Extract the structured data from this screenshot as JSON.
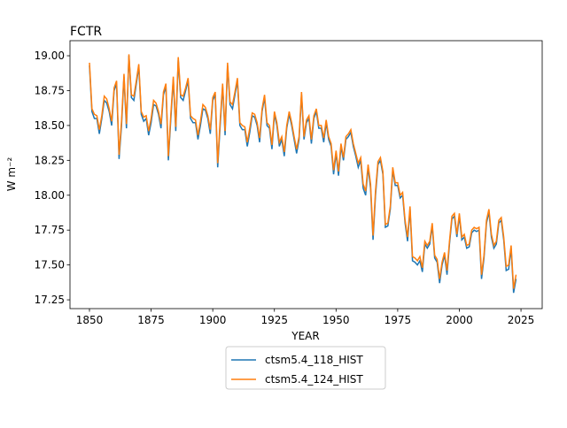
{
  "chart_data": {
    "type": "line",
    "title": "FCTR",
    "xlabel": "YEAR",
    "ylabel": "W m⁻²",
    "x": [
      1850,
      1851,
      1852,
      1853,
      1854,
      1855,
      1856,
      1857,
      1858,
      1859,
      1860,
      1861,
      1862,
      1863,
      1864,
      1865,
      1866,
      1867,
      1868,
      1869,
      1870,
      1871,
      1872,
      1873,
      1874,
      1875,
      1876,
      1877,
      1878,
      1879,
      1880,
      1881,
      1882,
      1883,
      1884,
      1885,
      1886,
      1887,
      1888,
      1889,
      1890,
      1891,
      1892,
      1893,
      1894,
      1895,
      1896,
      1897,
      1898,
      1899,
      1900,
      1901,
      1902,
      1903,
      1904,
      1905,
      1906,
      1907,
      1908,
      1909,
      1910,
      1911,
      1912,
      1913,
      1914,
      1915,
      1916,
      1917,
      1918,
      1919,
      1920,
      1921,
      1922,
      1923,
      1924,
      1925,
      1926,
      1927,
      1928,
      1929,
      1930,
      1931,
      1932,
      1933,
      1934,
      1935,
      1936,
      1937,
      1938,
      1939,
      1940,
      1941,
      1942,
      1943,
      1944,
      1945,
      1946,
      1947,
      1948,
      1949,
      1950,
      1951,
      1952,
      1953,
      1954,
      1955,
      1956,
      1957,
      1958,
      1959,
      1960,
      1961,
      1962,
      1963,
      1964,
      1965,
      1966,
      1967,
      1968,
      1969,
      1970,
      1971,
      1972,
      1973,
      1974,
      1975,
      1976,
      1977,
      1978,
      1979,
      1980,
      1981,
      1982,
      1983,
      1984,
      1985,
      1986,
      1987,
      1988,
      1989,
      1990,
      1991,
      1992,
      1993,
      1994,
      1995,
      1996,
      1997,
      1998,
      1999,
      2000,
      2001,
      2002,
      2003,
      2004,
      2005,
      2006,
      2007,
      2008,
      2009,
      2010,
      2011,
      2012,
      2013,
      2014,
      2015,
      2016,
      2017,
      2018,
      2019,
      2020,
      2021,
      2022,
      2023
    ],
    "series": [
      {
        "name": "ctsm5.4_118_HIST",
        "color": "#1f77b4",
        "values": [
          18.93,
          18.6,
          18.55,
          18.55,
          18.44,
          18.55,
          18.68,
          18.66,
          18.6,
          18.5,
          18.75,
          18.8,
          18.26,
          18.5,
          18.85,
          18.48,
          19.0,
          18.7,
          18.68,
          18.8,
          18.92,
          18.58,
          18.53,
          18.55,
          18.43,
          18.52,
          18.65,
          18.64,
          18.58,
          18.48,
          18.72,
          18.78,
          18.25,
          18.55,
          18.83,
          18.46,
          18.97,
          18.7,
          18.68,
          18.75,
          18.82,
          18.55,
          18.52,
          18.52,
          18.4,
          18.5,
          18.62,
          18.61,
          18.55,
          18.44,
          18.68,
          18.72,
          18.2,
          18.5,
          18.78,
          18.43,
          18.93,
          18.65,
          18.62,
          18.72,
          18.82,
          18.5,
          18.47,
          18.47,
          18.35,
          18.45,
          18.57,
          18.56,
          18.5,
          18.38,
          18.6,
          18.7,
          18.5,
          18.48,
          18.33,
          18.58,
          18.5,
          18.35,
          18.4,
          18.28,
          18.48,
          18.58,
          18.5,
          18.4,
          18.3,
          18.4,
          18.72,
          18.4,
          18.52,
          18.55,
          18.37,
          18.55,
          18.6,
          18.48,
          18.48,
          18.38,
          18.52,
          18.4,
          18.35,
          18.15,
          18.3,
          18.14,
          18.35,
          18.25,
          18.4,
          18.42,
          18.45,
          18.35,
          18.28,
          18.2,
          18.25,
          18.05,
          18.0,
          18.2,
          18.05,
          17.68,
          18.0,
          18.22,
          18.25,
          18.15,
          17.77,
          17.78,
          17.9,
          18.18,
          18.07,
          18.07,
          17.98,
          18.0,
          17.8,
          17.67,
          17.9,
          17.53,
          17.52,
          17.5,
          17.53,
          17.45,
          17.65,
          17.62,
          17.65,
          17.78,
          17.55,
          17.52,
          17.37,
          17.5,
          17.57,
          17.43,
          17.65,
          17.83,
          17.85,
          17.7,
          17.85,
          17.68,
          17.7,
          17.62,
          17.63,
          17.73,
          17.75,
          17.74,
          17.75,
          17.4,
          17.55,
          17.8,
          17.88,
          17.7,
          17.62,
          17.65,
          17.8,
          17.82,
          17.68,
          17.46,
          17.47,
          17.62,
          17.3,
          17.4
        ]
      },
      {
        "name": "ctsm5.4_124_HIST",
        "color": "#ff7f0e",
        "values": [
          18.95,
          18.62,
          18.58,
          18.57,
          18.47,
          18.57,
          18.71,
          18.69,
          18.62,
          18.53,
          18.77,
          18.82,
          18.29,
          18.53,
          18.87,
          18.51,
          19.01,
          18.72,
          18.71,
          18.82,
          18.94,
          18.6,
          18.56,
          18.57,
          18.46,
          18.55,
          18.68,
          18.66,
          18.6,
          18.51,
          18.74,
          18.8,
          18.28,
          18.58,
          18.85,
          18.49,
          18.99,
          18.72,
          18.71,
          18.77,
          18.84,
          18.57,
          18.55,
          18.54,
          18.43,
          18.53,
          18.65,
          18.63,
          18.57,
          18.47,
          18.7,
          18.74,
          18.23,
          18.53,
          18.8,
          18.46,
          18.95,
          18.67,
          18.65,
          18.74,
          18.84,
          18.52,
          18.5,
          18.49,
          18.38,
          18.48,
          18.59,
          18.58,
          18.52,
          18.41,
          18.62,
          18.72,
          18.52,
          18.5,
          18.36,
          18.6,
          18.52,
          18.38,
          18.42,
          18.31,
          18.5,
          18.6,
          18.52,
          18.42,
          18.33,
          18.42,
          18.74,
          18.42,
          18.54,
          18.57,
          18.4,
          18.57,
          18.62,
          18.5,
          18.5,
          18.41,
          18.54,
          18.42,
          18.37,
          18.18,
          18.32,
          18.17,
          18.37,
          18.27,
          18.42,
          18.44,
          18.47,
          18.37,
          18.3,
          18.23,
          18.27,
          18.08,
          18.03,
          18.22,
          18.08,
          17.71,
          18.03,
          18.24,
          18.27,
          18.17,
          17.79,
          17.8,
          17.92,
          18.2,
          18.09,
          18.09,
          18.0,
          18.02,
          17.82,
          17.7,
          17.92,
          17.56,
          17.55,
          17.53,
          17.56,
          17.48,
          17.67,
          17.64,
          17.67,
          17.8,
          17.57,
          17.54,
          17.4,
          17.52,
          17.59,
          17.46,
          17.67,
          17.85,
          17.87,
          17.72,
          17.87,
          17.7,
          17.72,
          17.64,
          17.65,
          17.75,
          17.77,
          17.76,
          17.77,
          17.43,
          17.57,
          17.82,
          17.9,
          17.72,
          17.64,
          17.67,
          17.82,
          17.84,
          17.7,
          17.49,
          17.5,
          17.64,
          17.33,
          17.43
        ]
      }
    ],
    "xlim": [
      1842.1,
      2033.6
    ],
    "ylim": [
      17.187,
      19.108
    ],
    "xticks": [
      1850,
      1875,
      1900,
      1925,
      1950,
      1975,
      2000,
      2025
    ],
    "yticks": [
      17.25,
      {
        "value": 17.5,
        "label": "17.50"
      },
      17.75,
      {
        "value": 18,
        "label": "18.00"
      },
      18.25,
      {
        "value": 18.5,
        "label": "18.50"
      },
      18.75,
      {
        "value": 19,
        "label": "19.00"
      }
    ]
  }
}
